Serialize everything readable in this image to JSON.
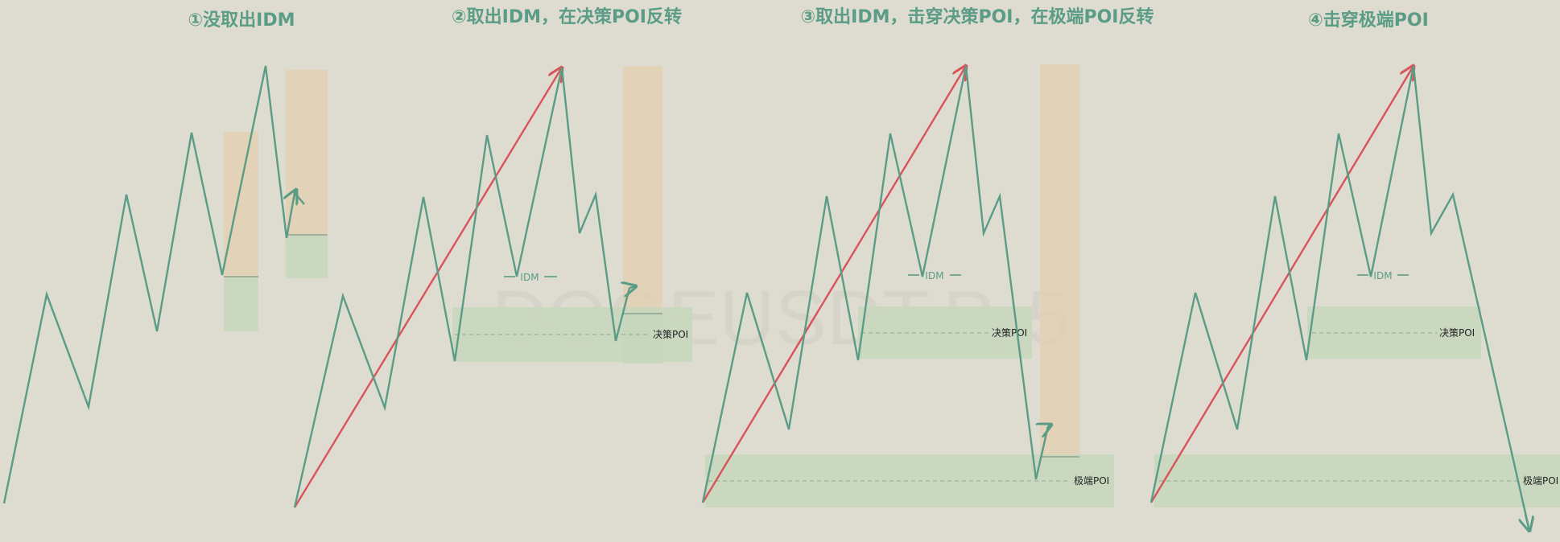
{
  "panels": [
    {
      "title": "①没取出IDM"
    },
    {
      "title": "②取出IDM，在决策POI反转",
      "idm_label": "IDM",
      "poi_label": "决策POI"
    },
    {
      "title": "③取出IDM，击穿决策POI，在极端POI反转",
      "idm_label": "IDM",
      "poi_label": "决策POI",
      "extreme_label": "极端POI"
    },
    {
      "title": "④击穿极端POI",
      "idm_label": "IDM",
      "poi_label": "决策POI",
      "extreme_label": "极端POI"
    }
  ],
  "watermark": "DOGEUSDT.P, 5",
  "colors": {
    "background": "#dedcd1",
    "price_line": "#5a9c86",
    "arrow": "#d8545a",
    "orange_zone": "#e2cfae",
    "green_zone": "#c5d7bb",
    "title": "#5a9c86"
  }
}
